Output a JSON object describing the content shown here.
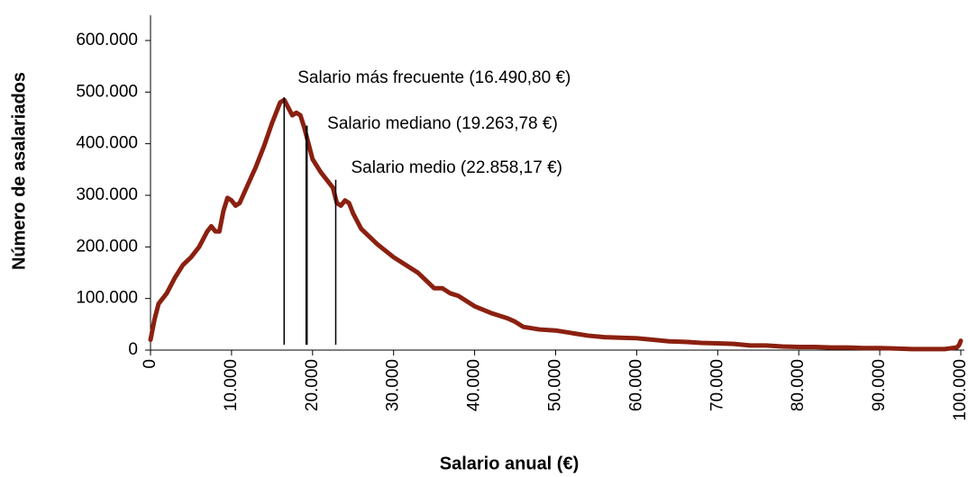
{
  "chart_data": {
    "type": "line",
    "x_label": "Salario anual (€)",
    "y_label": "Número de asalariados",
    "xlim": [
      0,
      100000
    ],
    "ylim": [
      0,
      600000
    ],
    "xticks": [
      0,
      {
        "value": 10000,
        "label": "10.000"
      },
      {
        "value": 20000,
        "label": "20.000"
      },
      {
        "value": 30000,
        "label": "30.000"
      },
      {
        "value": 40000,
        "label": "40.000"
      },
      {
        "value": 50000,
        "label": "50.000"
      },
      {
        "value": 60000,
        "label": "60.000"
      },
      {
        "value": 70000,
        "label": "70.000"
      },
      {
        "value": 80000,
        "label": "80.000"
      },
      {
        "value": 90000,
        "label": "90.000"
      },
      {
        "value": 100000,
        "label": "100.000"
      }
    ],
    "yticks": [
      0,
      {
        "value": 100000,
        "label": "100.000"
      },
      {
        "value": 200000,
        "label": "200.000"
      },
      {
        "value": 300000,
        "label": "300.000"
      },
      {
        "value": 400000,
        "label": "400.000"
      },
      {
        "value": 500000,
        "label": "500.000"
      },
      {
        "value": 600000,
        "label": "600.000"
      }
    ],
    "series": [
      {
        "color": "#8b2010",
        "x": [
          0,
          500,
          1000,
          2000,
          3000,
          4000,
          5000,
          6000,
          7000,
          7500,
          8000,
          8500,
          9000,
          9500,
          10000,
          10500,
          11000,
          12000,
          13000,
          14000,
          15000,
          16000,
          16500,
          17000,
          17500,
          18000,
          18500,
          19000,
          20000,
          21000,
          22000,
          22500,
          23000,
          23500,
          24000,
          24500,
          25000,
          26000,
          28000,
          30000,
          32000,
          33000,
          34000,
          35000,
          36000,
          37000,
          38000,
          40000,
          42000,
          44000,
          45000,
          46000,
          48000,
          50000,
          52000,
          54000,
          56000,
          58000,
          60000,
          62000,
          64000,
          66000,
          68000,
          70000,
          72000,
          74000,
          76000,
          78000,
          80000,
          82000,
          84000,
          86000,
          88000,
          90000,
          92000,
          94000,
          96000,
          98000,
          99500,
          99800,
          100000
        ],
        "values": [
          20000,
          60000,
          90000,
          110000,
          140000,
          165000,
          180000,
          200000,
          230000,
          240000,
          230000,
          230000,
          270000,
          295000,
          290000,
          280000,
          285000,
          320000,
          355000,
          395000,
          440000,
          480000,
          485000,
          470000,
          455000,
          460000,
          455000,
          430000,
          370000,
          345000,
          325000,
          315000,
          285000,
          280000,
          290000,
          285000,
          265000,
          235000,
          205000,
          180000,
          160000,
          150000,
          135000,
          120000,
          120000,
          110000,
          105000,
          85000,
          72000,
          62000,
          55000,
          45000,
          40000,
          38000,
          33000,
          28000,
          25000,
          24000,
          23000,
          20000,
          17000,
          16000,
          14000,
          13000,
          12000,
          9000,
          9000,
          7000,
          6000,
          6000,
          5000,
          5000,
          4000,
          4000,
          3000,
          2000,
          2000,
          2000,
          5000,
          10000,
          18000
        ]
      }
    ],
    "annotations": [
      {
        "text": "Salario más frecuente (16.490,80 €)",
        "x": 16490.8,
        "y": 490000
      },
      {
        "text": "Salario mediano (19.263,78 €)",
        "x": 19263.78,
        "y": 435000
      },
      {
        "text": "Salario medio (22.858,17 €)",
        "x": 22858.17,
        "y": 330000
      }
    ]
  }
}
